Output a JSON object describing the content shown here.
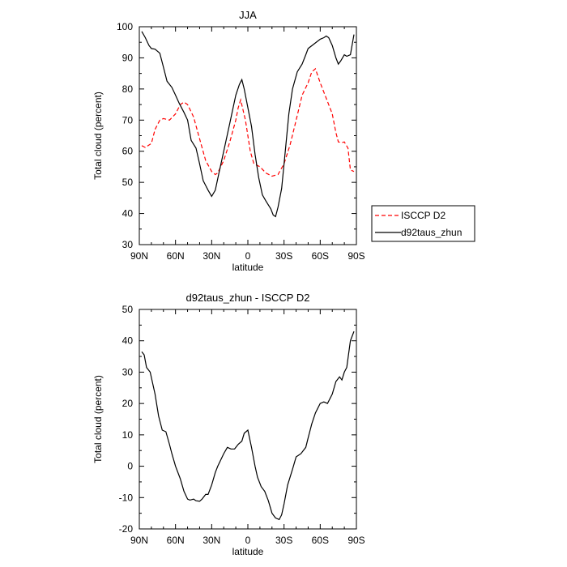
{
  "chart_data": [
    {
      "type": "line",
      "title": "JJA",
      "xlabel": "latitude",
      "ylabel": "Total cloud (percent)",
      "xlim": [
        90,
        -90
      ],
      "ylim": [
        30,
        100
      ],
      "xticks": [
        90,
        60,
        30,
        0,
        -30,
        -60,
        -90
      ],
      "xtick_labels": [
        "90N",
        "60N",
        "30N",
        "0",
        "30S",
        "60S",
        "90S"
      ],
      "yticks": [
        30,
        40,
        50,
        60,
        70,
        80,
        90,
        100
      ],
      "ytick_labels": [
        "30",
        "40",
        "50",
        "60",
        "70",
        "80",
        "90",
        "100"
      ],
      "legend_position": "right",
      "series": [
        {
          "name": "ISCCP D2",
          "color": "#ff0000",
          "dash": "dashed",
          "x": [
            88,
            85,
            80,
            77,
            73,
            70,
            65,
            60,
            56,
            53,
            50,
            45,
            40,
            35,
            30,
            27,
            25,
            20,
            15,
            10,
            8,
            6,
            2,
            -2,
            -5,
            -10,
            -15,
            -20,
            -25,
            -30,
            -35,
            -40,
            -45,
            -50,
            -53,
            -56,
            -60,
            -65,
            -70,
            -73,
            -75,
            -78,
            -80,
            -83,
            -85,
            -88
          ],
          "y": [
            61.8,
            61.2,
            62.5,
            67,
            70,
            70.5,
            70,
            72,
            75,
            75.8,
            75,
            71,
            64,
            57,
            53.5,
            52.5,
            53,
            57,
            63,
            70,
            74,
            76.5,
            70,
            60,
            56,
            55,
            53,
            52,
            52.5,
            56,
            62,
            70,
            78,
            82,
            85.5,
            86.5,
            82,
            77,
            72,
            66,
            63,
            62.8,
            63,
            61,
            54,
            53.5
          ]
        },
        {
          "name": "d92taus_zhun",
          "color": "#000000",
          "dash": "solid",
          "x": [
            88,
            85,
            82,
            80,
            77,
            73,
            70,
            67,
            63,
            60,
            57,
            53,
            50,
            47,
            43,
            40,
            37,
            33,
            30,
            27,
            24,
            20,
            15,
            10,
            7,
            5,
            3,
            0,
            -3,
            -6,
            -9,
            -12,
            -15,
            -19,
            -21,
            -23,
            -25,
            -28,
            -31,
            -34,
            -37,
            -41,
            -45,
            -48,
            -50,
            -55,
            -60,
            -63,
            -65,
            -67,
            -70,
            -73,
            -75,
            -77,
            -80,
            -82,
            -85,
            -88
          ],
          "y": [
            98.5,
            96.5,
            94,
            93,
            92.8,
            91.5,
            87,
            82.5,
            80.5,
            78,
            75.5,
            72.5,
            70,
            63.5,
            61,
            56,
            50.5,
            47.5,
            45.5,
            47.5,
            53,
            60,
            69,
            78,
            81.5,
            83,
            80,
            74,
            68,
            59,
            51.5,
            46,
            44,
            41.5,
            39.5,
            39,
            42,
            48,
            60,
            72,
            80,
            85.5,
            88,
            91,
            93,
            94.5,
            96,
            96.5,
            97,
            96.5,
            94,
            90,
            88,
            89,
            91,
            90.5,
            91,
            97.5
          ]
        }
      ]
    },
    {
      "type": "line",
      "title": "d92taus_zhun - ISCCP D2",
      "xlabel": "latitude",
      "ylabel": "Total cloud (percent)",
      "xlim": [
        90,
        -90
      ],
      "ylim": [
        -20,
        50
      ],
      "xticks": [
        90,
        60,
        30,
        0,
        -30,
        -60,
        -90
      ],
      "xtick_labels": [
        "90N",
        "60N",
        "30N",
        "0",
        "30S",
        "60S",
        "90S"
      ],
      "yticks": [
        -20,
        -10,
        0,
        10,
        20,
        30,
        40,
        50
      ],
      "ytick_labels": [
        "-20",
        "-10",
        "0",
        "10",
        "20",
        "30",
        "40",
        "50"
      ],
      "series": [
        {
          "color": "#000000",
          "dash": "solid",
          "x": [
            88,
            86,
            84,
            81,
            77,
            74,
            71,
            68,
            65,
            63,
            60,
            56,
            53,
            50,
            48,
            45,
            43,
            40,
            38,
            35,
            33,
            30,
            27,
            25,
            20,
            17,
            14,
            11,
            8,
            5,
            3,
            0,
            -3,
            -6,
            -8,
            -11,
            -14,
            -17,
            -20,
            -23,
            -26,
            -28,
            -30,
            -33,
            -37,
            -40,
            -44,
            -48,
            -50,
            -53,
            -56,
            -60,
            -63,
            -66,
            -70,
            -73,
            -76,
            -78,
            -80,
            -82,
            -85,
            -88
          ],
          "y": [
            36.5,
            35.5,
            31.5,
            30,
            23,
            16,
            11.5,
            11,
            7,
            4,
            0,
            -4,
            -8,
            -10.5,
            -10.8,
            -10.5,
            -11,
            -11.2,
            -10.5,
            -9,
            -9,
            -6,
            -2,
            0,
            4,
            6,
            5.5,
            5.5,
            7,
            8,
            10.5,
            11.5,
            6,
            0,
            -3.5,
            -6.5,
            -8,
            -11,
            -15,
            -16.5,
            -17,
            -15.5,
            -12,
            -6,
            -1,
            3,
            4,
            6,
            9,
            13.5,
            17,
            20,
            20.5,
            20,
            23,
            27,
            28.5,
            27.5,
            30,
            31.5,
            40,
            43
          ]
        }
      ]
    }
  ]
}
